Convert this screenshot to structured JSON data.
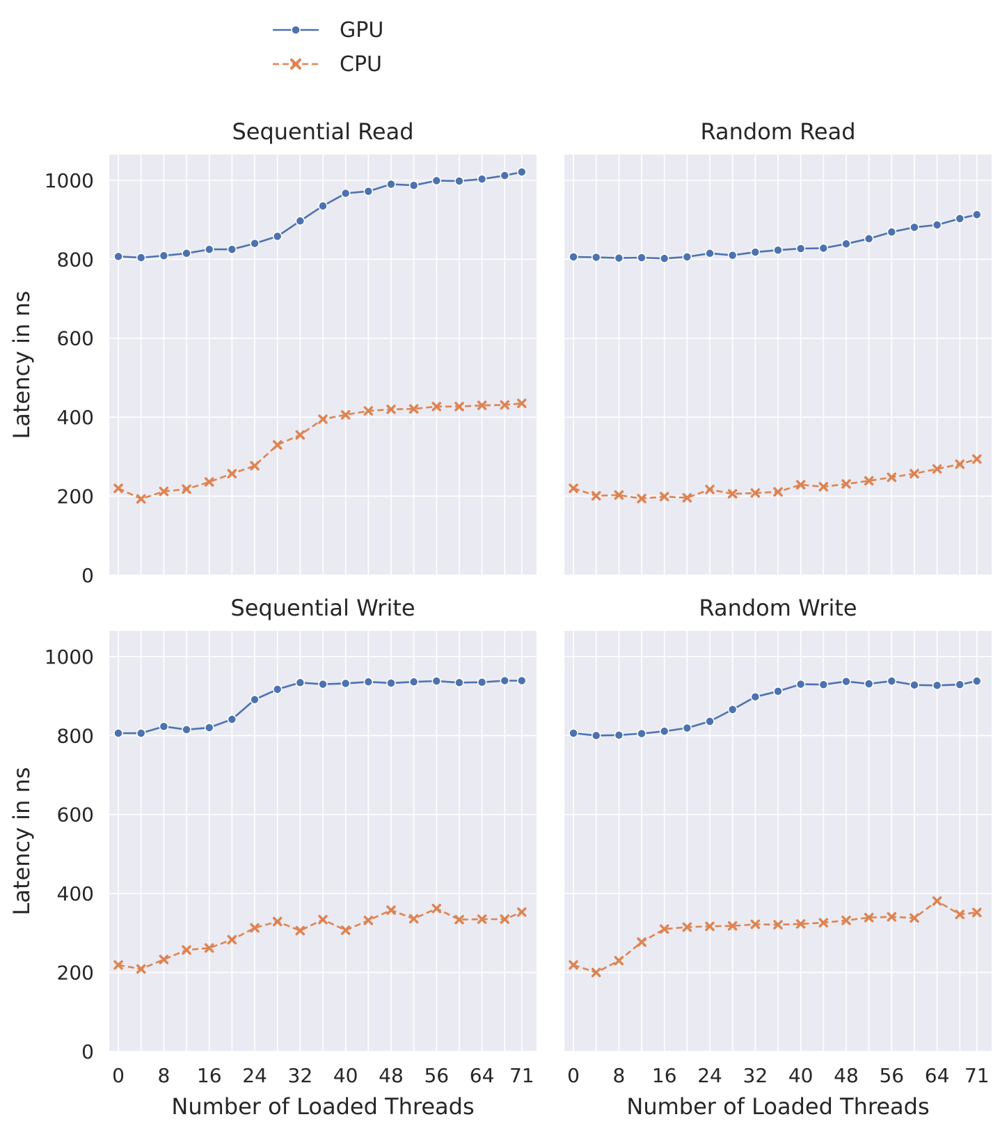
{
  "legend": {
    "placement": "top-left",
    "entries": [
      {
        "name": "GPU",
        "color": "#4c72b0",
        "marker": "circle",
        "line": "solid"
      },
      {
        "name": "CPU",
        "color": "#dd8452",
        "marker": "x",
        "line": "dashed"
      }
    ]
  },
  "shared": {
    "ylabel": "Latency in ns",
    "xlabel": "Number of Loaded Threads",
    "xticks": [
      "0",
      "8",
      "16",
      "24",
      "32",
      "40",
      "48",
      "56",
      "64",
      "71"
    ],
    "yticks": [
      "0",
      "200",
      "400",
      "600",
      "800",
      "1000"
    ]
  },
  "chart_data": [
    {
      "type": "line",
      "title": "Sequential Read",
      "xlabel": "",
      "ylabel": "Latency in ns",
      "x": [
        0,
        4,
        8,
        12,
        16,
        20,
        24,
        28,
        32,
        36,
        40,
        44,
        48,
        52,
        56,
        60,
        64,
        68,
        71
      ],
      "xlim": [
        -1.6,
        73.6
      ],
      "ylim": [
        0,
        1065
      ],
      "grid": true,
      "series": [
        {
          "name": "GPU",
          "values": [
            807,
            804,
            809,
            815,
            825,
            825,
            840,
            858,
            897,
            935,
            967,
            972,
            990,
            987,
            999,
            998,
            1003,
            1012,
            1021
          ]
        },
        {
          "name": "CPU",
          "values": [
            220,
            193,
            212,
            218,
            236,
            257,
            277,
            330,
            355,
            395,
            406,
            416,
            420,
            421,
            427,
            427,
            430,
            431,
            435
          ]
        }
      ]
    },
    {
      "type": "line",
      "title": "Random Read",
      "xlabel": "",
      "ylabel": "",
      "x": [
        0,
        4,
        8,
        12,
        16,
        20,
        24,
        28,
        32,
        36,
        40,
        44,
        48,
        52,
        56,
        60,
        64,
        68,
        71
      ],
      "xlim": [
        -1.6,
        73.6
      ],
      "ylim": [
        0,
        1065
      ],
      "grid": true,
      "series": [
        {
          "name": "GPU",
          "values": [
            806,
            805,
            803,
            804,
            802,
            806,
            815,
            810,
            818,
            823,
            827,
            828,
            839,
            852,
            869,
            881,
            887,
            903,
            913
          ]
        },
        {
          "name": "CPU",
          "values": [
            220,
            201,
            203,
            194,
            199,
            196,
            217,
            206,
            208,
            211,
            229,
            224,
            231,
            239,
            248,
            257,
            269,
            281,
            294
          ]
        }
      ]
    },
    {
      "type": "line",
      "title": "Sequential Write",
      "xlabel": "Number of Loaded Threads",
      "ylabel": "Latency in ns",
      "x": [
        0,
        4,
        8,
        12,
        16,
        20,
        24,
        28,
        32,
        36,
        40,
        44,
        48,
        52,
        56,
        60,
        64,
        68,
        71
      ],
      "xlim": [
        -1.6,
        73.6
      ],
      "ylim": [
        0,
        1065
      ],
      "grid": true,
      "series": [
        {
          "name": "GPU",
          "values": [
            806,
            806,
            823,
            815,
            820,
            841,
            891,
            917,
            934,
            930,
            932,
            936,
            933,
            936,
            938,
            934,
            935,
            939,
            939
          ]
        },
        {
          "name": "CPU",
          "values": [
            219,
            209,
            233,
            257,
            262,
            283,
            313,
            329,
            306,
            334,
            307,
            332,
            358,
            336,
            362,
            334,
            335,
            335,
            353
          ]
        }
      ]
    },
    {
      "type": "line",
      "title": "Random Write",
      "xlabel": "Number of Loaded Threads",
      "ylabel": "",
      "x": [
        0,
        4,
        8,
        12,
        16,
        20,
        24,
        28,
        32,
        36,
        40,
        44,
        48,
        52,
        56,
        60,
        64,
        68,
        71
      ],
      "xlim": [
        -1.6,
        73.6
      ],
      "ylim": [
        0,
        1065
      ],
      "grid": true,
      "series": [
        {
          "name": "GPU",
          "values": [
            806,
            800,
            801,
            805,
            811,
            819,
            836,
            866,
            898,
            912,
            930,
            929,
            937,
            931,
            938,
            928,
            927,
            929,
            938
          ]
        },
        {
          "name": "CPU",
          "values": [
            219,
            200,
            230,
            277,
            310,
            315,
            317,
            318,
            322,
            321,
            323,
            326,
            332,
            339,
            341,
            338,
            381,
            347,
            352
          ]
        }
      ]
    }
  ]
}
